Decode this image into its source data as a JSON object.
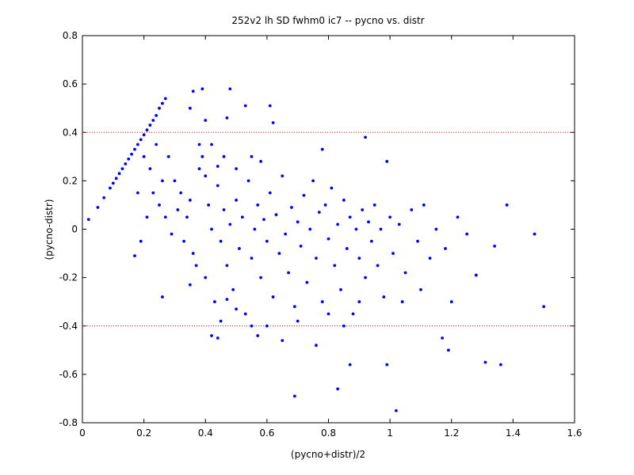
{
  "chart_data": {
    "type": "scatter",
    "title": "252v2 lh SD fwhm0 ic7 -- pycno vs. distr",
    "xlabel": "(pycno+distr)/2",
    "ylabel": "(pycno-distr)",
    "color": "#0000ff",
    "xlim": [
      0,
      1.6
    ],
    "xticks": [
      0,
      0.2,
      0.4,
      0.6,
      0.8,
      1,
      1.2,
      1.4,
      1.6
    ],
    "ylim": [
      -0.8,
      0.8
    ],
    "yticks": [
      -0.8,
      -0.6,
      -0.4,
      -0.2,
      0,
      0.2,
      0.4,
      0.6,
      0.8
    ],
    "reference_lines": [
      0.4,
      -0.4
    ],
    "reference_color": "#ff0000",
    "grid": false,
    "x": [
      0.02,
      0.05,
      0.07,
      0.09,
      0.1,
      0.11,
      0.12,
      0.13,
      0.14,
      0.15,
      0.16,
      0.17,
      0.18,
      0.19,
      0.2,
      0.21,
      0.22,
      0.23,
      0.24,
      0.25,
      0.26,
      0.27,
      1.02,
      0.83,
      0.69,
      1.5,
      1.47,
      1.38,
      1.31,
      1.36,
      1.28,
      1.34,
      1.19,
      1.17,
      1.2,
      0.48,
      0.39,
      0.36,
      0.53,
      0.61,
      0.62,
      0.35,
      0.92,
      0.78,
      0.99,
      0.26,
      0.17,
      0.42,
      0.44,
      0.87,
      0.99,
      0.76,
      0.65,
      0.57,
      0.3,
      0.32,
      0.34,
      0.36,
      0.38,
      0.4,
      0.41,
      0.42,
      0.43,
      0.44,
      0.45,
      0.46,
      0.47,
      0.48,
      0.49,
      0.5,
      0.51,
      0.52,
      0.53,
      0.54,
      0.55,
      0.56,
      0.57,
      0.58,
      0.59,
      0.6,
      0.61,
      0.62,
      0.63,
      0.64,
      0.65,
      0.66,
      0.67,
      0.68,
      0.69,
      0.7,
      0.71,
      0.72,
      0.73,
      0.74,
      0.75,
      0.76,
      0.77,
      0.78,
      0.79,
      0.8,
      0.81,
      0.82,
      0.83,
      0.84,
      0.85,
      0.86,
      0.87,
      0.88,
      0.89,
      0.9,
      0.91,
      0.92,
      0.93,
      0.94,
      0.95,
      0.96,
      0.97,
      0.98,
      1.0,
      1.01,
      1.03,
      1.05,
      1.07,
      1.09,
      1.11,
      1.13,
      1.15,
      1.18,
      1.22,
      1.25,
      1.1,
      1.04,
      0.2,
      0.22,
      0.24,
      0.26,
      0.28,
      0.25,
      0.23,
      0.27,
      0.29,
      0.31,
      0.33,
      0.35,
      0.37,
      0.39,
      0.4,
      0.42,
      0.44,
      0.46,
      0.5,
      0.55,
      0.58,
      0.45,
      0.5,
      0.6,
      0.7,
      0.8,
      0.85,
      0.9,
      0.18,
      0.19,
      0.21,
      0.35,
      0.47,
      0.4,
      0.38,
      0.47,
      0.55
    ],
    "values": [
      0.04,
      0.09,
      0.13,
      0.17,
      0.19,
      0.21,
      0.23,
      0.25,
      0.27,
      0.29,
      0.31,
      0.33,
      0.35,
      0.37,
      0.39,
      0.41,
      0.43,
      0.45,
      0.47,
      0.5,
      0.52,
      0.54,
      -0.75,
      -0.66,
      -0.69,
      -0.32,
      -0.02,
      0.1,
      -0.55,
      -0.56,
      -0.19,
      -0.07,
      -0.5,
      -0.45,
      -0.3,
      0.58,
      0.58,
      0.57,
      0.51,
      0.51,
      0.44,
      0.5,
      0.38,
      0.33,
      0.28,
      -0.28,
      -0.11,
      -0.44,
      -0.45,
      -0.56,
      -0.56,
      -0.48,
      -0.46,
      -0.44,
      0.2,
      0.15,
      0.05,
      -0.1,
      0.25,
      -0.2,
      0.1,
      0.0,
      -0.3,
      0.18,
      -0.05,
      0.08,
      -0.15,
      0.02,
      -0.25,
      0.12,
      -0.08,
      0.05,
      -0.35,
      0.2,
      -0.12,
      0.0,
      0.1,
      -0.2,
      0.04,
      -0.05,
      0.15,
      -0.28,
      0.06,
      -0.1,
      0.22,
      -0.02,
      -0.18,
      0.09,
      -0.32,
      0.03,
      -0.07,
      0.14,
      -0.22,
      0.0,
      0.2,
      -0.12,
      0.07,
      -0.3,
      0.1,
      -0.04,
      0.17,
      -0.15,
      0.02,
      -0.25,
      0.12,
      -0.08,
      0.05,
      -0.35,
      0.0,
      -0.12,
      0.08,
      -0.2,
      0.03,
      -0.05,
      0.1,
      -0.15,
      0.0,
      -0.28,
      0.05,
      -0.1,
      0.02,
      -0.18,
      0.08,
      -0.05,
      0.1,
      -0.12,
      0.0,
      -0.08,
      0.05,
      -0.02,
      -0.25,
      -0.3,
      0.3,
      0.25,
      0.35,
      0.2,
      0.3,
      0.1,
      0.15,
      0.05,
      -0.02,
      0.08,
      -0.05,
      0.12,
      -0.15,
      0.3,
      0.22,
      0.35,
      0.26,
      0.3,
      0.25,
      0.3,
      0.28,
      -0.38,
      -0.33,
      -0.4,
      -0.38,
      -0.35,
      -0.4,
      -0.3,
      0.15,
      -0.05,
      0.05,
      -0.23,
      0.46,
      0.45,
      0.35,
      -0.29,
      -0.4
    ]
  }
}
